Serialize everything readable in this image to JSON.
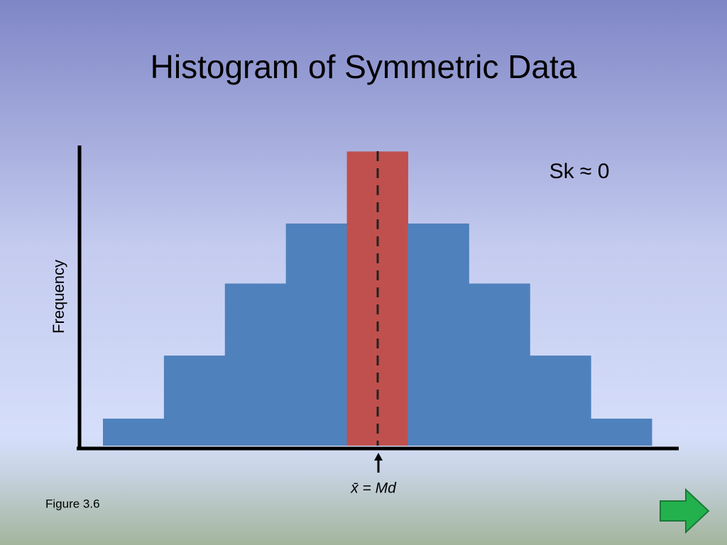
{
  "chart_data": {
    "type": "histogram",
    "title": "Histogram of Symmetric Data",
    "y_label": "Frequency",
    "annotation": "Sk ≈ 0",
    "center_label": "x̄ = Md",
    "caption": "Figure 3.6",
    "values": [
      0.9,
      3,
      5.4,
      7.4,
      9.8,
      7.4,
      5.4,
      3,
      0.9
    ],
    "colors": [
      "#4f81bd",
      "#4f81bd",
      "#4f81bd",
      "#4f81bd",
      "#c0504d",
      "#4f81bd",
      "#4f81bd",
      "#4f81bd",
      "#4f81bd"
    ],
    "ylim": [
      0,
      10
    ]
  }
}
